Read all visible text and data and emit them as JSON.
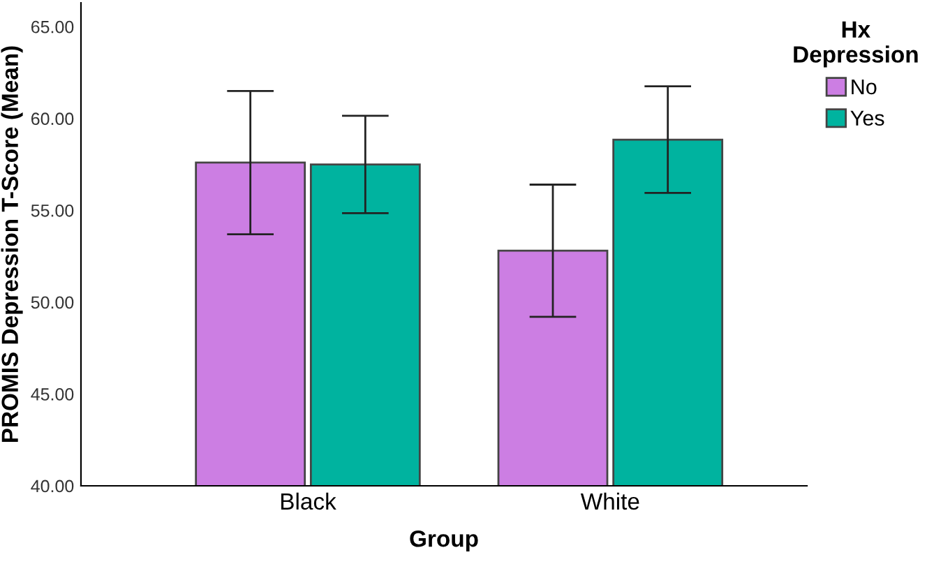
{
  "chart_data": {
    "type": "bar",
    "xlabel": "Group",
    "ylabel": "PROMIS Depression T-Score (Mean)",
    "legend_title": "Hx\nDepression",
    "legend": "top right",
    "categories": [
      "Black",
      "White"
    ],
    "series": [
      {
        "name": "No",
        "color": "#cc7ee3",
        "values": [
          57.6,
          52.8
        ],
        "errors": [
          [
            53.7,
            61.5
          ],
          [
            49.2,
            56.4
          ]
        ]
      },
      {
        "name": "Yes",
        "color": "#00b39f",
        "values": [
          57.5,
          58.85
        ],
        "errors": [
          [
            54.85,
            60.15
          ],
          [
            55.95,
            61.75
          ]
        ]
      }
    ],
    "ylim": [
      40,
      66.3
    ],
    "yticks": [
      {
        "value": 40,
        "label": "40.00"
      },
      {
        "value": 45,
        "label": "45.00"
      },
      {
        "value": 50,
        "label": "50.00"
      },
      {
        "value": 55,
        "label": "55.00"
      },
      {
        "value": 60,
        "label": "60.00"
      },
      {
        "value": 65,
        "label": "65.00"
      }
    ],
    "grid": false
  }
}
